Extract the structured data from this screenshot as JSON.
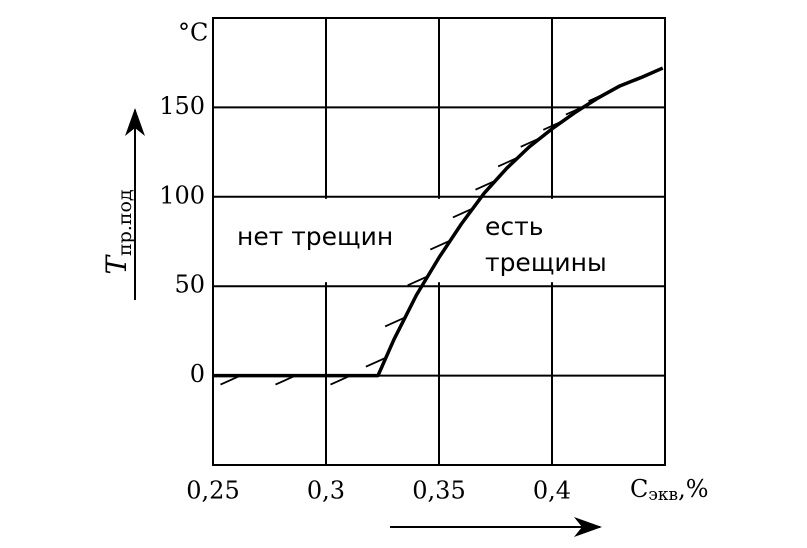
{
  "chart_data": {
    "type": "line",
    "y_unit": "°C",
    "y_label": {
      "main": "T",
      "sub": "пр.под"
    },
    "x_label": {
      "main": "C",
      "sub": "экв",
      "suffix": ",%"
    },
    "annotations": [
      "нет трещин",
      "есть",
      "трещины"
    ],
    "xlim": [
      0.25,
      0.45
    ],
    "xticks": [
      {
        "value": 0.25,
        "label": "0,25"
      },
      {
        "value": 0.3,
        "label": "0,3"
      },
      {
        "value": 0.35,
        "label": "0,35"
      },
      {
        "value": 0.4,
        "label": "0,4"
      }
    ],
    "ylim": [
      -50,
      200
    ],
    "yticks": [
      0,
      50,
      100,
      150
    ],
    "grid": true,
    "x": [
      0.25,
      0.323,
      0.33,
      0.34,
      0.35,
      0.36,
      0.37,
      0.38,
      0.39,
      0.4,
      0.41,
      0.42,
      0.43,
      0.44,
      0.449
    ],
    "series": [
      {
        "color": "#000000",
        "values": [
          0,
          0,
          20,
          45,
          66,
          85,
          102,
          116,
          128,
          138,
          147,
          155,
          162,
          167,
          172
        ]
      }
    ]
  }
}
